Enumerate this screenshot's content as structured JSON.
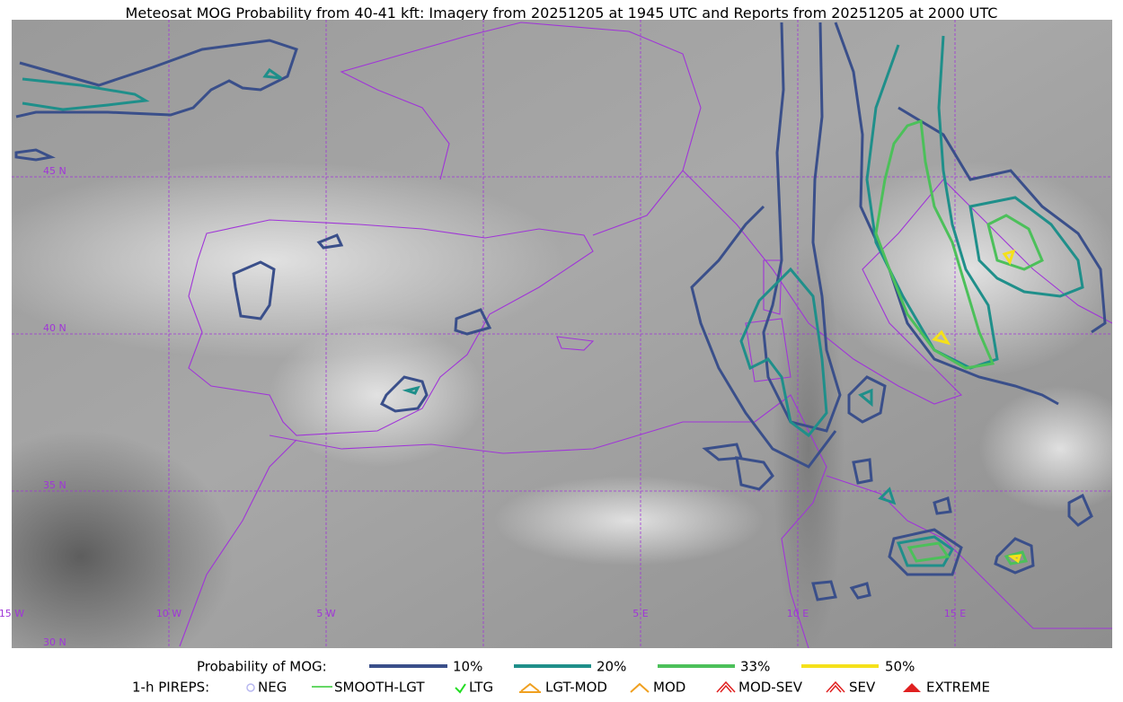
{
  "title": "Meteosat MOG Probability from 40-41 kft: Imagery from 20251205 at 1945 UTC and Reports from 20251205 at 2000 UTC",
  "grid_labels": {
    "lat": [
      "45 N",
      "40 N",
      "35 N",
      "30 N"
    ],
    "lon": [
      "15 W",
      "10 W",
      "5 W",
      "5 E",
      "10 E",
      "15 E"
    ]
  },
  "legend": {
    "probability": {
      "label": "Probability of MOG:",
      "items": [
        "10%",
        "20%",
        "33%",
        "50%"
      ]
    },
    "pireps": {
      "label": "1-h PIREPS:",
      "items": [
        "NEG",
        "SMOOTH-LGT",
        "LTG",
        "LGT-MOD",
        "MOD",
        "MOD-SEV",
        "SEV",
        "EXTREME"
      ]
    }
  }
}
